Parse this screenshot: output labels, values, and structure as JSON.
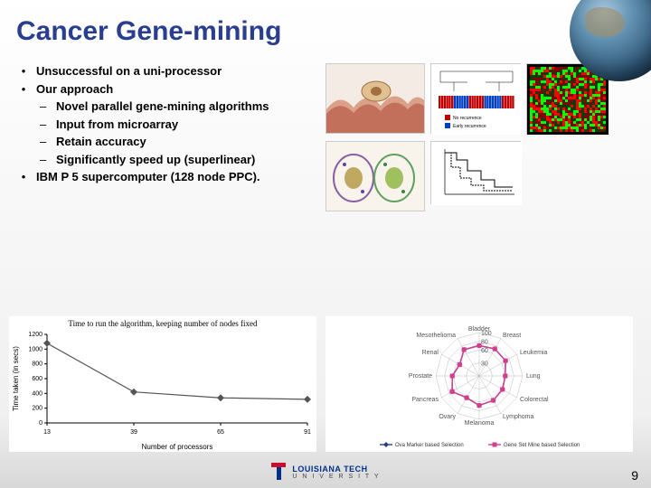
{
  "title": "Cancer Gene-mining",
  "bullets": [
    {
      "level": 1,
      "text": "Unsuccessful on a uni-processor"
    },
    {
      "level": 1,
      "text": "Our approach"
    },
    {
      "level": 2,
      "text": "Novel parallel gene-mining algorithms"
    },
    {
      "level": 2,
      "text": "Input from microarray"
    },
    {
      "level": 2,
      "text": "Retain accuracy"
    },
    {
      "level": 2,
      "text": "Significantly speed up (superlinear)"
    },
    {
      "level": 1,
      "text": "IBM P 5 supercomputer (128 node PPC)."
    }
  ],
  "linechart": {
    "title": "Time to run the algorithm, keeping number of nodes fixed",
    "xlabel": "Number of processors",
    "ylabel": "Time taken (in secs)",
    "xticks": [
      "13",
      "39",
      "65",
      "91"
    ],
    "yticks": [
      "0",
      "200",
      "400",
      "600",
      "800",
      "1000",
      "1200"
    ],
    "ylim": [
      0,
      1200
    ],
    "series": [
      {
        "marker": "diamond",
        "color": "#555555",
        "points": [
          {
            "x": 13,
            "y": 1080
          },
          {
            "x": 39,
            "y": 420
          },
          {
            "x": 65,
            "y": 340
          },
          {
            "x": 91,
            "y": 320
          }
        ]
      }
    ],
    "line_color": "#555555",
    "background": "#ffffff",
    "axis_color": "#000000"
  },
  "radarchart": {
    "axes": [
      "Bladder",
      "Breast",
      "Leukemia",
      "Lung",
      "Colorectal",
      "Lymphoma",
      "Melanoma",
      "Ovary",
      "Pancreas",
      "Prostate",
      "Renal",
      "Mesothelioma"
    ],
    "rings": [
      0,
      30,
      60,
      80,
      100
    ],
    "ring_labels": [
      "0",
      "30",
      "60",
      "80",
      "100"
    ],
    "series": [
      {
        "name": "Ova Marker based Selection",
        "color": "#2a3e8f",
        "marker": "diamond",
        "values": [
          70,
          72,
          70,
          60,
          62,
          65,
          68,
          58,
          72,
          62,
          52,
          70
        ]
      },
      {
        "name": "Gene Set Mine based Selection",
        "color": "#d53e8f",
        "marker": "square",
        "values": [
          70,
          72,
          70,
          60,
          62,
          65,
          68,
          58,
          72,
          62,
          52,
          70
        ]
      }
    ],
    "grid_color": "#bbbbbb",
    "background": "#ffffff",
    "legend_font_size": 6
  },
  "footer": {
    "university_main": "LOUISIANA TECH",
    "university_sub": "U N I V E R S I T Y",
    "logo_colors": {
      "red": "#c8102e",
      "blue": "#003087"
    }
  },
  "page_number": "9",
  "figure_placeholders": {
    "cell_img_accent": "#c04040",
    "dendro_colors": [
      "#c00000",
      "#0040c0"
    ],
    "dendro_legend": [
      "No recurrence",
      "Early recurrence"
    ],
    "heatmap_colors": [
      "#004000",
      "#00ff00",
      "#ff0000",
      "#800000"
    ],
    "survival_line": "#000000"
  },
  "colors": {
    "title": "#2a3e8f",
    "text": "#000000",
    "bg_gradient_top": "#ffffff",
    "bg_gradient_bottom": "#d8d8d8"
  }
}
